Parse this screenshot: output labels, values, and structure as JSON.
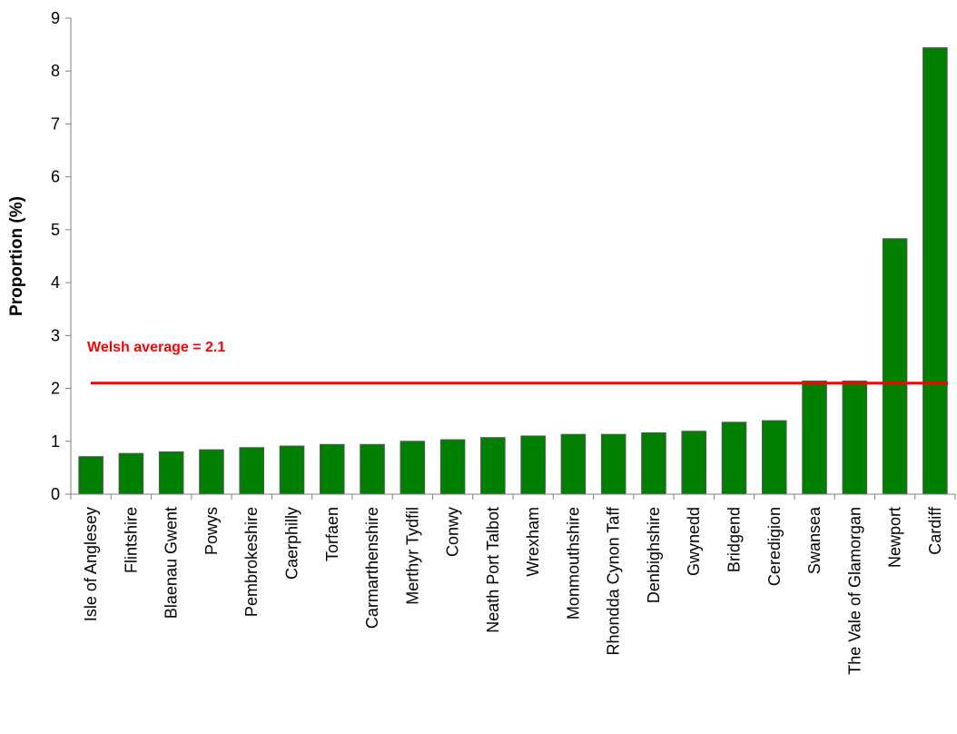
{
  "chart_data": {
    "type": "bar",
    "title": "",
    "xlabel": "",
    "ylabel": "Proportion (%)",
    "ylim": [
      0,
      9
    ],
    "yticks": [
      0,
      1,
      2,
      3,
      4,
      5,
      6,
      7,
      8,
      9
    ],
    "grid": false,
    "legend": "none",
    "categories": [
      "Isle of Anglesey",
      "Flintshire",
      "Blaenau Gwent",
      "Powys",
      "Pembrokeshire",
      "Caerphilly",
      "Torfaen",
      "Carmarthenshire",
      "Merthyr Tydfil",
      "Conwy",
      "Neath Port Talbot",
      "Wrexham",
      "Monmouthshire",
      "Rhondda Cynon Taff",
      "Denbighshire",
      "Gwynedd",
      "Bridgend",
      "Ceredigion",
      "Swansea",
      "The Vale of Glamorgan",
      "Newport",
      "Cardiff"
    ],
    "values": [
      0.71,
      0.77,
      0.8,
      0.84,
      0.88,
      0.91,
      0.94,
      0.94,
      1.0,
      1.03,
      1.07,
      1.1,
      1.13,
      1.13,
      1.16,
      1.19,
      1.36,
      1.39,
      2.14,
      2.14,
      4.83,
      8.44
    ],
    "reference_line": {
      "value": 2.1,
      "label": "Welsh average = 2.1"
    },
    "colors": {
      "bar": "#008000",
      "bar_stroke": "#555555",
      "reference_line": "#ff0000",
      "axis": "#808080"
    }
  }
}
